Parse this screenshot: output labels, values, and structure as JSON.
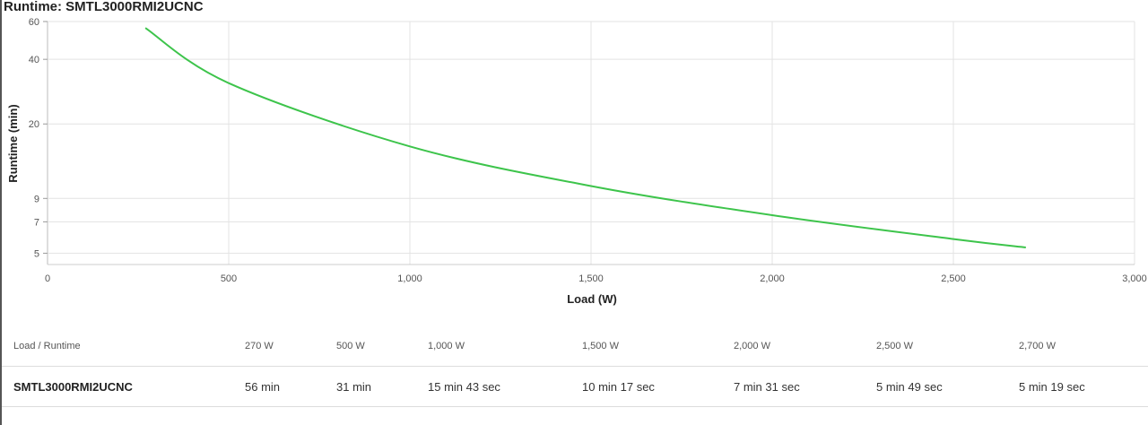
{
  "title": "Runtime: SMTL3000RMI2UCNC",
  "chart_data": {
    "type": "line",
    "title": "Runtime: SMTL3000RMI2UCNC",
    "xlabel": "Load (W)",
    "ylabel": "Runtime (min)",
    "xlim": [
      0,
      3000
    ],
    "ylim": [
      4.43,
      60
    ],
    "yscale": "log",
    "xticks": [
      0,
      500,
      1000,
      1500,
      2000,
      2500,
      3000
    ],
    "xtick_labels": [
      "0",
      "500",
      "1,000",
      "1,500",
      "2,000",
      "2,500",
      "3,000"
    ],
    "yticks": [
      5,
      7,
      9,
      20,
      40,
      60
    ],
    "ytick_labels": [
      "5",
      "7",
      "9",
      "20",
      "40",
      "60"
    ],
    "grid": true,
    "series": [
      {
        "name": "SMTL3000RMI2UCNC",
        "color": "#3dc44b",
        "x": [
          270,
          500,
          1000,
          1500,
          2000,
          2500,
          2700
        ],
        "y": [
          56,
          31,
          15.72,
          10.28,
          7.52,
          5.82,
          5.32
        ]
      }
    ]
  },
  "table": {
    "header_label": "Load / Runtime",
    "loads": [
      "270 W",
      "500 W",
      "1,000 W",
      "1,500 W",
      "2,000 W",
      "2,500 W",
      "2,700 W"
    ],
    "model": "SMTL3000RMI2UCNC",
    "runtimes": [
      "56 min",
      "31 min",
      "15 min 43 sec",
      "10 min 17 sec",
      "7 min 31 sec",
      "5 min 49 sec",
      "5 min 19 sec"
    ]
  }
}
